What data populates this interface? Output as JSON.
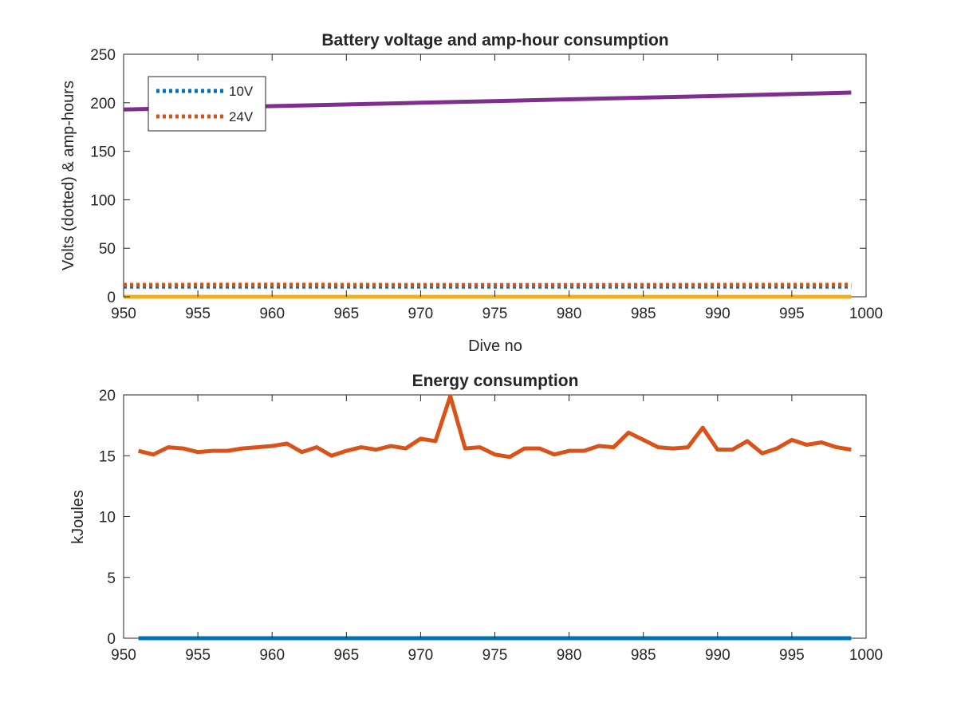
{
  "chart_data": [
    {
      "type": "line",
      "title": "Battery voltage and amp-hour consumption",
      "xlabel": "Dive no",
      "ylabel": "Volts (dotted) & amp-hours",
      "xlim": [
        950,
        1000
      ],
      "ylim": [
        0,
        250
      ],
      "xticks": [
        "950",
        "955",
        "960",
        "965",
        "970",
        "975",
        "980",
        "985",
        "990",
        "995",
        "1000"
      ],
      "yticks": [
        "0",
        "50",
        "100",
        "150",
        "200",
        "250"
      ],
      "grid": false,
      "legend": {
        "placement": "top-left",
        "entries": [
          "10V",
          "24V"
        ]
      },
      "series": [
        {
          "name": "10V",
          "color": "#0072BD",
          "style": "dotted",
          "x": [
            950,
            999
          ],
          "y": [
            10.5,
            10.5
          ]
        },
        {
          "name": "24V",
          "color": "#D95319",
          "style": "dotted",
          "x": [
            950,
            960,
            970,
            980,
            990,
            999
          ],
          "y": [
            12.3,
            12.5,
            12.2,
            12.1,
            12.3,
            12.4
          ]
        },
        {
          "color": "#7E2F8E",
          "style": "solid",
          "x": [
            950,
            960,
            970,
            980,
            990,
            999
          ],
          "y": [
            193,
            196.5,
            200,
            203.5,
            207,
            210.5
          ]
        },
        {
          "color": "#EDB120",
          "style": "solid",
          "x": [
            950,
            999
          ],
          "y": [
            0,
            0
          ]
        }
      ]
    },
    {
      "type": "line",
      "title": "Energy consumption",
      "xlabel": "",
      "ylabel": "kJoules",
      "xlim": [
        950,
        1000
      ],
      "ylim": [
        0,
        20
      ],
      "xticks": [
        "950",
        "955",
        "960",
        "965",
        "970",
        "975",
        "980",
        "985",
        "990",
        "995",
        "1000"
      ],
      "yticks": [
        "0",
        "5",
        "10",
        "15",
        "20"
      ],
      "grid": false,
      "series": [
        {
          "color": "#D95319",
          "style": "solid",
          "x": [
            951,
            952,
            953,
            954,
            955,
            956,
            957,
            958,
            959,
            960,
            961,
            962,
            963,
            964,
            965,
            966,
            967,
            968,
            969,
            970,
            971,
            972,
            973,
            974,
            975,
            976,
            977,
            978,
            979,
            980,
            981,
            982,
            983,
            984,
            985,
            986,
            987,
            988,
            989,
            990,
            991,
            992,
            993,
            994,
            995,
            996,
            997,
            998,
            999
          ],
          "y": [
            15.4,
            15.1,
            15.7,
            15.6,
            15.3,
            15.4,
            15.4,
            15.6,
            15.7,
            15.8,
            16.0,
            15.3,
            15.7,
            15.0,
            15.4,
            15.7,
            15.5,
            15.8,
            15.6,
            16.4,
            16.2,
            19.9,
            15.6,
            15.7,
            15.1,
            14.9,
            15.6,
            15.6,
            15.1,
            15.4,
            15.4,
            15.8,
            15.7,
            16.9,
            16.3,
            15.7,
            15.6,
            15.7,
            17.3,
            15.5,
            15.5,
            16.2,
            15.2,
            15.6,
            16.3,
            15.9,
            16.1,
            15.7,
            15.5
          ]
        },
        {
          "color": "#0072BD",
          "style": "solid",
          "x": [
            951,
            999
          ],
          "y": [
            0,
            0
          ]
        }
      ]
    }
  ]
}
